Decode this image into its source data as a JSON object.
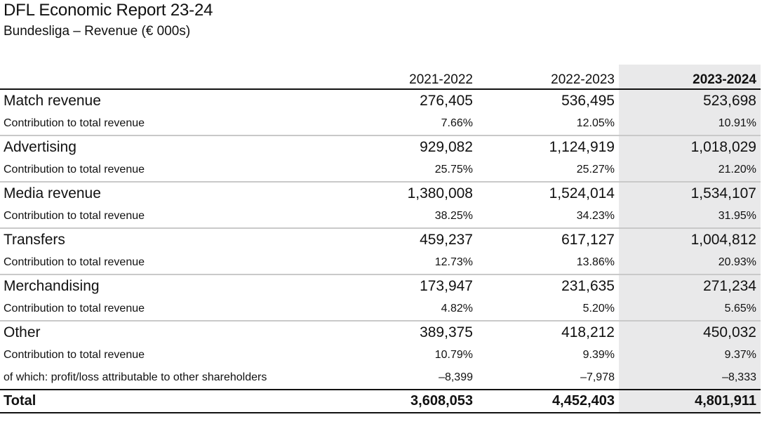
{
  "title": "DFL Economic Report 23-24",
  "subtitle": "Bundesliga – Revenue (€ 000s)",
  "columns": [
    "2021-2022",
    "2022-2023",
    "2023-2024"
  ],
  "rows": [
    {
      "label": "Match revenue",
      "values": [
        "276,405",
        "536,495",
        "523,698"
      ]
    },
    {
      "label": "Contribution to total revenue",
      "values": [
        "7.66%",
        "12.05%",
        "10.91%"
      ]
    },
    {
      "label": "Advertising",
      "values": [
        "929,082",
        "1,124,919",
        "1,018,029"
      ]
    },
    {
      "label": "Contribution to total revenue",
      "values": [
        "25.75%",
        "25.27%",
        "21.20%"
      ]
    },
    {
      "label": "Media revenue",
      "values": [
        "1,380,008",
        "1,524,014",
        "1,534,107"
      ]
    },
    {
      "label": "Contribution to total revenue",
      "values": [
        "38.25%",
        "34.23%",
        "31.95%"
      ]
    },
    {
      "label": "Transfers",
      "values": [
        "459,237",
        "617,127",
        "1,004,812"
      ]
    },
    {
      "label": "Contribution to total revenue",
      "values": [
        "12.73%",
        "13.86%",
        "20.93%"
      ]
    },
    {
      "label": "Merchandising",
      "values": [
        "173,947",
        "231,635",
        "271,234"
      ]
    },
    {
      "label": "Contribution to total revenue",
      "values": [
        "4.82%",
        "5.20%",
        "5.65%"
      ]
    },
    {
      "label": "Other",
      "values": [
        "389,375",
        "418,212",
        "450,032"
      ]
    },
    {
      "label": "Contribution to total revenue",
      "values": [
        "10.79%",
        "9.39%",
        "9.37%"
      ]
    },
    {
      "label": "of which: profit/loss attributable to other shareholders",
      "values": [
        "–8,399",
        "–7,978",
        "–8,333"
      ]
    },
    {
      "label": "Total",
      "values": [
        "3,608,053",
        "4,452,403",
        "4,801,911"
      ]
    }
  ]
}
